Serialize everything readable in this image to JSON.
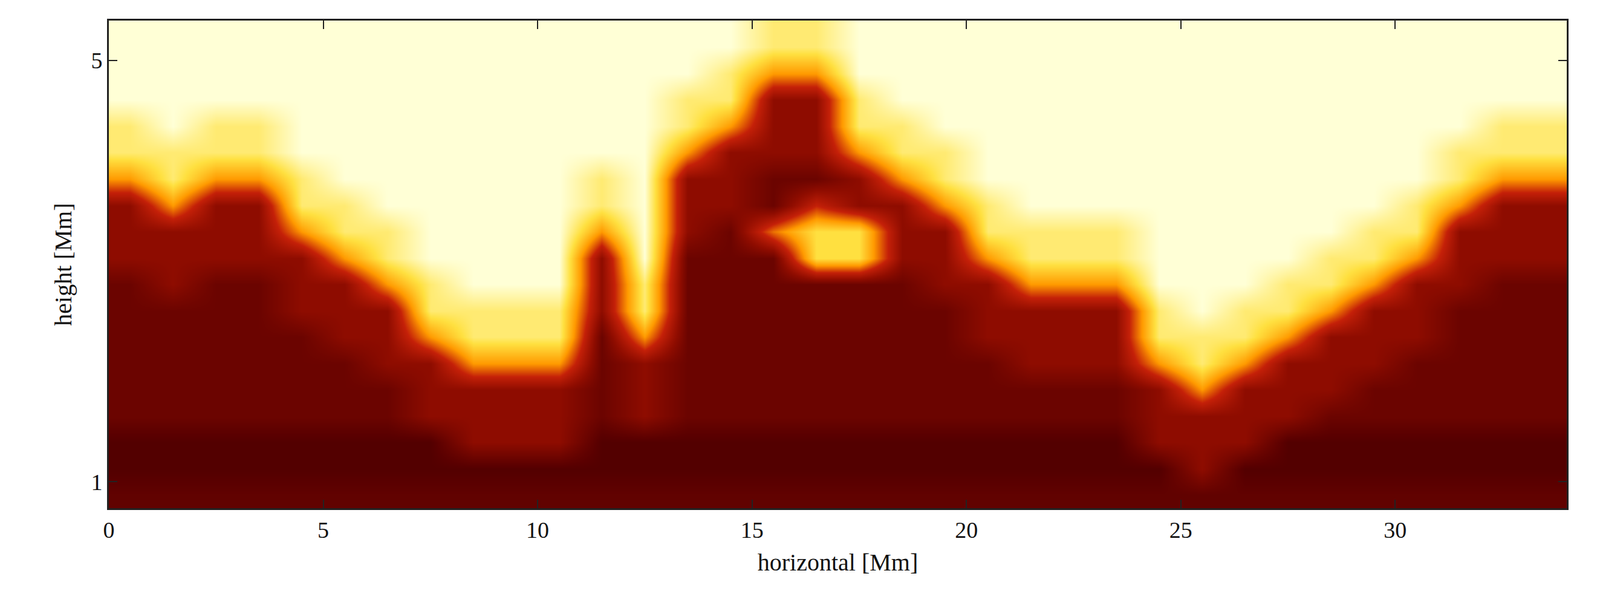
{
  "chart_data": {
    "type": "heatmap",
    "xlabel": "horizontal [Mm]",
    "ylabel": "height [Mm]",
    "xlim": [
      0,
      34
    ],
    "ylim": [
      0.75,
      5.38
    ],
    "xticks": [
      0,
      5,
      10,
      15,
      20,
      25,
      30
    ],
    "yticks": [
      1,
      5
    ],
    "zlim": [
      0,
      100
    ],
    "x": [
      0.5,
      1.5,
      2.5,
      3.5,
      4.5,
      5.5,
      6.5,
      7.5,
      8.5,
      9.5,
      10.5,
      11.5,
      12.5,
      13.5,
      14.5,
      15.5,
      16.5,
      17.5,
      18.5,
      19.5,
      20.5,
      21.5,
      22.5,
      23.5,
      24.5,
      25.5,
      26.5,
      27.5,
      28.5,
      29.5,
      30.5,
      31.5,
      32.5,
      33.5
    ],
    "y": [
      0.875,
      1.125,
      1.375,
      1.625,
      1.875,
      2.125,
      2.375,
      2.625,
      2.875,
      3.125,
      3.375,
      3.625,
      3.875,
      4.125,
      4.375,
      4.625,
      4.875,
      5.125,
      5.375
    ],
    "z": [
      [
        22,
        22,
        22,
        22,
        22,
        22,
        22,
        22,
        22,
        22,
        22,
        22,
        22,
        22,
        22,
        22,
        22,
        22,
        22,
        22,
        22,
        22,
        22,
        22,
        22,
        22,
        22,
        22,
        22,
        22,
        22,
        22,
        22,
        22
      ],
      [
        18,
        18,
        18,
        18,
        18,
        18,
        18,
        18,
        18,
        18,
        18,
        18,
        18,
        18,
        18,
        18,
        18,
        18,
        18,
        18,
        18,
        18,
        18,
        18,
        18,
        35,
        18,
        18,
        18,
        18,
        18,
        18,
        18,
        18
      ],
      [
        18,
        18,
        18,
        18,
        18,
        18,
        18,
        18,
        35,
        35,
        35,
        18,
        18,
        18,
        18,
        18,
        18,
        18,
        18,
        18,
        18,
        18,
        18,
        18,
        35,
        35,
        35,
        18,
        18,
        18,
        18,
        18,
        18,
        18
      ],
      [
        25,
        25,
        25,
        25,
        25,
        25,
        25,
        35,
        35,
        35,
        35,
        25,
        35,
        25,
        25,
        25,
        25,
        25,
        25,
        25,
        25,
        25,
        25,
        25,
        35,
        35,
        35,
        35,
        25,
        25,
        25,
        25,
        25,
        25
      ],
      [
        25,
        25,
        25,
        25,
        25,
        25,
        25,
        35,
        35,
        35,
        35,
        25,
        35,
        25,
        25,
        25,
        25,
        25,
        25,
        25,
        25,
        25,
        25,
        25,
        35,
        65,
        35,
        35,
        35,
        25,
        25,
        25,
        25,
        25
      ],
      [
        25,
        25,
        25,
        25,
        25,
        25,
        35,
        35,
        65,
        65,
        65,
        25,
        35,
        25,
        25,
        25,
        25,
        25,
        25,
        25,
        25,
        35,
        35,
        35,
        65,
        85,
        65,
        35,
        35,
        35,
        25,
        25,
        25,
        25
      ],
      [
        25,
        25,
        25,
        25,
        25,
        35,
        35,
        65,
        85,
        85,
        85,
        25,
        65,
        25,
        25,
        25,
        25,
        25,
        25,
        25,
        35,
        35,
        35,
        35,
        85,
        85,
        85,
        65,
        35,
        35,
        35,
        25,
        25,
        25
      ],
      [
        25,
        25,
        25,
        25,
        35,
        35,
        35,
        85,
        85,
        85,
        85,
        35,
        85,
        25,
        25,
        25,
        25,
        25,
        25,
        25,
        35,
        35,
        35,
        35,
        85,
        95,
        85,
        85,
        65,
        35,
        35,
        25,
        25,
        25
      ],
      [
        25,
        35,
        25,
        25,
        35,
        35,
        65,
        85,
        95,
        95,
        95,
        35,
        85,
        25,
        25,
        25,
        25,
        25,
        25,
        35,
        35,
        65,
        65,
        65,
        95,
        95,
        95,
        85,
        85,
        65,
        35,
        35,
        25,
        25
      ],
      [
        35,
        35,
        35,
        35,
        35,
        65,
        85,
        95,
        95,
        95,
        95,
        35,
        95,
        25,
        25,
        25,
        80,
        80,
        35,
        35,
        65,
        85,
        85,
        85,
        95,
        95,
        95,
        95,
        85,
        85,
        65,
        35,
        35,
        35
      ],
      [
        35,
        35,
        35,
        35,
        65,
        85,
        85,
        95,
        95,
        95,
        95,
        65,
        95,
        35,
        25,
        60,
        80,
        80,
        35,
        35,
        85,
        85,
        85,
        85,
        95,
        95,
        95,
        95,
        95,
        85,
        85,
        35,
        35,
        35
      ],
      [
        35,
        65,
        35,
        35,
        85,
        85,
        95,
        95,
        95,
        95,
        95,
        85,
        95,
        35,
        35,
        25,
        50,
        35,
        35,
        65,
        85,
        95,
        95,
        95,
        95,
        95,
        95,
        95,
        95,
        95,
        85,
        65,
        35,
        35
      ],
      [
        65,
        85,
        65,
        65,
        85,
        95,
        95,
        95,
        95,
        95,
        95,
        85,
        95,
        35,
        35,
        25,
        25,
        35,
        65,
        85,
        95,
        95,
        95,
        95,
        95,
        95,
        95,
        95,
        95,
        95,
        95,
        85,
        65,
        65
      ],
      [
        85,
        85,
        85,
        85,
        95,
        95,
        95,
        95,
        95,
        95,
        95,
        95,
        95,
        65,
        35,
        35,
        35,
        65,
        85,
        85,
        95,
        95,
        95,
        95,
        95,
        95,
        95,
        95,
        95,
        95,
        95,
        85,
        85,
        85
      ],
      [
        85,
        95,
        85,
        85,
        95,
        95,
        95,
        95,
        95,
        95,
        95,
        95,
        95,
        85,
        65,
        35,
        35,
        85,
        85,
        95,
        95,
        95,
        95,
        95,
        95,
        95,
        95,
        95,
        95,
        95,
        95,
        95,
        85,
        85
      ],
      [
        95,
        95,
        95,
        95,
        95,
        95,
        95,
        95,
        95,
        95,
        95,
        95,
        95,
        85,
        85,
        35,
        35,
        85,
        95,
        95,
        95,
        95,
        95,
        95,
        95,
        95,
        95,
        95,
        95,
        95,
        95,
        95,
        95,
        95
      ],
      [
        95,
        95,
        95,
        95,
        95,
        95,
        95,
        95,
        95,
        95,
        95,
        95,
        95,
        95,
        85,
        65,
        65,
        95,
        95,
        95,
        95,
        95,
        95,
        95,
        95,
        95,
        95,
        95,
        95,
        95,
        95,
        95,
        95,
        95
      ],
      [
        95,
        95,
        95,
        95,
        95,
        95,
        95,
        95,
        95,
        95,
        95,
        95,
        95,
        95,
        95,
        85,
        85,
        95,
        95,
        95,
        95,
        95,
        95,
        95,
        95,
        95,
        95,
        95,
        95,
        95,
        95,
        95,
        95,
        95
      ],
      [
        95,
        95,
        95,
        95,
        95,
        95,
        95,
        95,
        95,
        95,
        95,
        95,
        95,
        95,
        95,
        85,
        85,
        95,
        95,
        95,
        95,
        95,
        95,
        95,
        95,
        95,
        95,
        95,
        95,
        95,
        95,
        95,
        95,
        95
      ]
    ]
  }
}
